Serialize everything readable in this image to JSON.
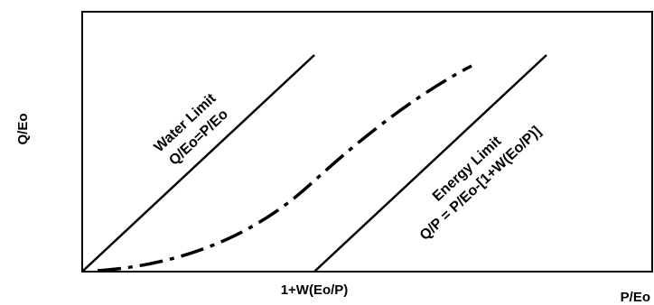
{
  "diagram": {
    "y_axis_label": "Q/Eo",
    "x_axis_label": "P/Eo",
    "x_tick_label": "1+W(Eo/P)",
    "water_limit": {
      "title": "Water Limit",
      "equation": "Q/Eo=P/Eo"
    },
    "energy_limit": {
      "title": "Energy Limit",
      "equation": "Q/P = P/Eo-[1+W(Eo/P)]"
    },
    "colors": {
      "line": "#000000",
      "background": "#ffffff"
    }
  }
}
